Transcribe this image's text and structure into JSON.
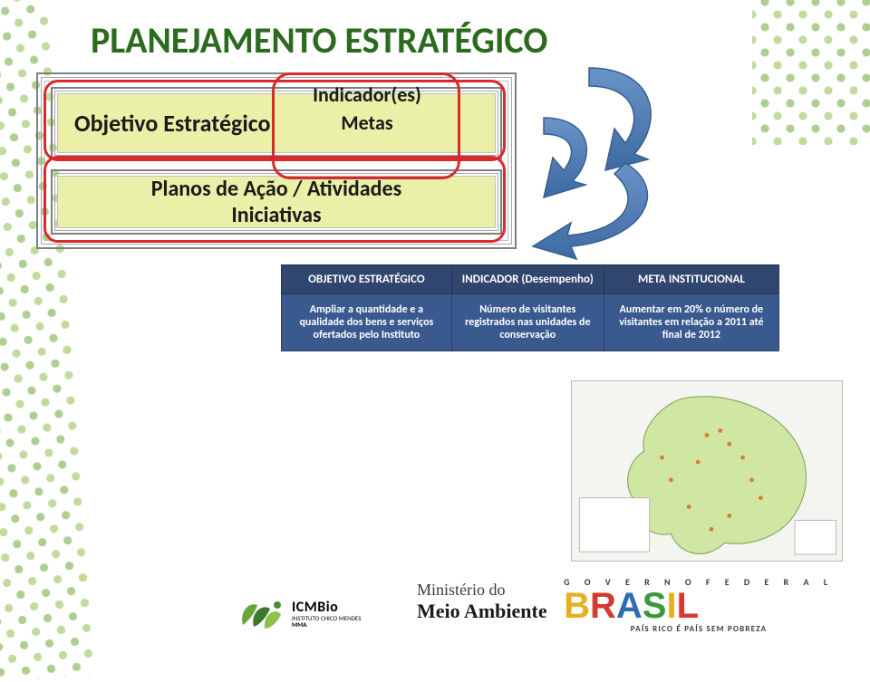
{
  "title": {
    "text": "PLANEJAMENTO ESTRATÉGICO",
    "color": "#2a6b1e",
    "fontsize": 40
  },
  "hierarchy": {
    "objective_label": "Objetivo Estratégico",
    "indicator_label": "Indicador(es)",
    "metas_label": "Metas",
    "plans_label_line1": "Planos de Ação / Atividades",
    "plans_label_line2": "Iniciativas",
    "box_bg": "#eaf0a8",
    "border_colors": [
      "#7f7f7f",
      "#a6a6a6",
      "#bfbfbf"
    ],
    "red_outline_color": "#d82a2a"
  },
  "arrows": {
    "fill": "#4678b8",
    "stroke": "#365f91"
  },
  "table": {
    "header_bg": "#30466e",
    "cell_bg": "#3a5a8f",
    "text_color": "#ffffff",
    "headers": [
      "OBJETIVO ESTRATÉGICO",
      "INDICADOR (Desempenho)",
      "META INSTITUCIONAL"
    ],
    "row": [
      "Ampliar a quantidade e a qualidade dos bens e serviços ofertados pelo Instituto",
      "Número de visitantes registrados nas unidades de conservação",
      "Aumentar em 20% o número de visitantes em relação a 2011 até final de 2012"
    ]
  },
  "map": {
    "land_color": "#cfe7a2",
    "highlight_color": "#e07a2d",
    "water_color": "#dfeaf3",
    "border_color": "#8a8a8a"
  },
  "footer": {
    "icmbio": {
      "name": "ICMBio",
      "sub": "INSTITUTO CHICO MENDES",
      "sub2": "MMA",
      "colors": [
        "#6aa53a",
        "#3b7a2b",
        "#8fbf4d",
        "#4c8c33"
      ]
    },
    "mma": {
      "line1": "Ministério do",
      "line2": "Meio Ambiente"
    },
    "brasil": {
      "gov": "G O V E R N O   F E D E R A L",
      "letters": [
        {
          "ch": "B",
          "color": "#e8b020"
        },
        {
          "ch": "R",
          "color": "#d43a2e"
        },
        {
          "ch": "A",
          "color": "#2f6db3"
        },
        {
          "ch": "S",
          "color": "#3a9a3a"
        },
        {
          "ch": "I",
          "color": "#e8b020"
        },
        {
          "ch": "L",
          "color": "#d43a2e"
        }
      ],
      "tagline": "PAÍS RICO É PAÍS SEM POBREZA"
    }
  }
}
